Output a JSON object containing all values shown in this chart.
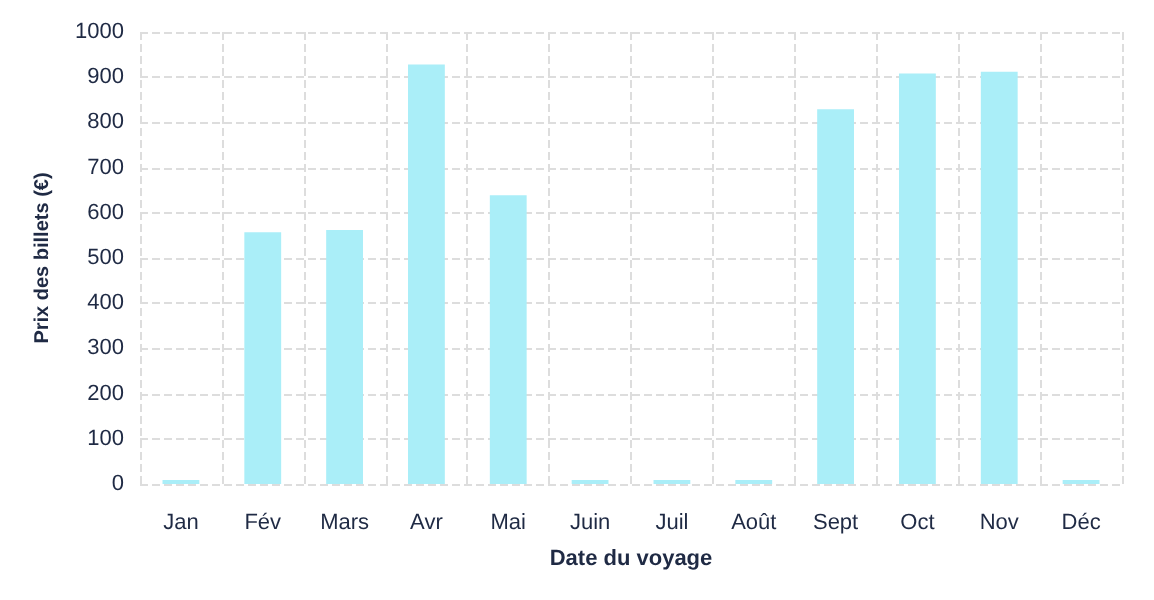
{
  "chart_data": {
    "type": "bar",
    "xlabel": "Date du voyage",
    "ylabel": "Prix des billets (€)",
    "categories": [
      "Jan",
      "Fév",
      "Mars",
      "Avr",
      "Mai",
      "Juin",
      "Juil",
      "Août",
      "Sept",
      "Oct",
      "Nov",
      "Déc"
    ],
    "values": [
      0,
      557,
      562,
      928,
      639,
      0,
      0,
      0,
      829,
      908,
      912,
      0
    ],
    "color": "#aaeef8",
    "ylim": [
      0,
      1000
    ],
    "yticks": [
      0,
      100,
      200,
      300,
      400,
      500,
      600,
      700,
      800,
      900,
      1000
    ],
    "grid": true
  }
}
